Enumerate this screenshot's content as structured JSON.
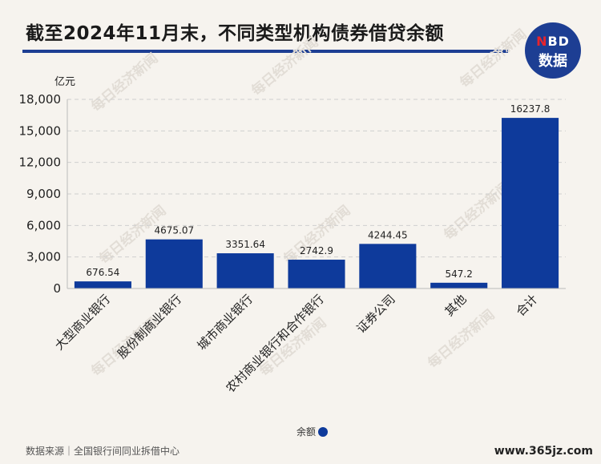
{
  "header": {
    "title": "截至2024年11月末，不同类型机构债券借贷余额",
    "logo_top": "NBD",
    "logo_bottom": "数据"
  },
  "footer": {
    "source": "数据来源｜全国银行间同业拆借中心",
    "site": "www.365jz.com"
  },
  "watermark": "每日经济新闻",
  "colors": {
    "bar": "#0e3a9b",
    "title_rule": "#1d3e93",
    "logo": "#1d3e93",
    "background": "#f6f3ee"
  },
  "chart_data": {
    "type": "bar",
    "title": "截至2024年11月末，不同类型机构债券借贷余额",
    "ylabel": "亿元",
    "xlabel": "",
    "ylim": [
      0,
      18000
    ],
    "yticks": [
      0,
      3000,
      6000,
      9000,
      12000,
      15000,
      18000
    ],
    "ytick_labels": [
      "0",
      "3,000",
      "6,000",
      "9,000",
      "12,000",
      "15,000",
      "18,000"
    ],
    "grid": true,
    "legend_position": "bottom-center",
    "categories": [
      "大型商业银行",
      "股份制商业银行",
      "城市商业银行",
      "农村商业银行和合作银行",
      "证券公司",
      "其他",
      "合计"
    ],
    "series": [
      {
        "name": "余额",
        "values": [
          676.54,
          4675.07,
          3351.64,
          2742.9,
          4244.45,
          547.2,
          16237.8
        ],
        "value_labels": [
          "676.54",
          "4675.07",
          "3351.64",
          "2742.9",
          "4244.45",
          "547.2",
          "16237.8"
        ]
      }
    ]
  }
}
